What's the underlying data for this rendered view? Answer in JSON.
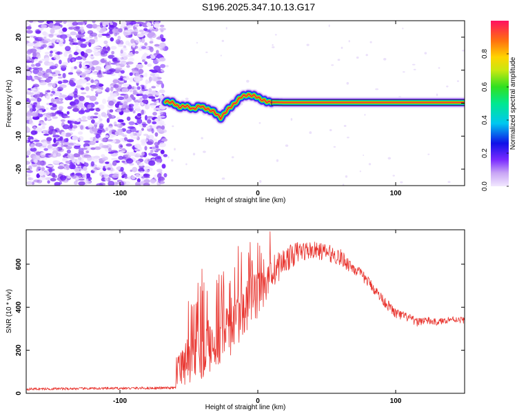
{
  "figure_title": "S196.2025.347.10.13.G17",
  "chart_data": [
    {
      "type": "heatmap",
      "title": "S196.2025.347.10.13.G17",
      "xlabel": "Height of straight line (km)",
      "ylabel": "Frequency (Hz)",
      "xlim": [
        -168,
        150
      ],
      "ylim": [
        -25,
        25
      ],
      "xticks": [
        -100,
        0,
        100
      ],
      "yticks": [
        -20,
        -10,
        0,
        10,
        20
      ],
      "noise_region_x": [
        -168,
        -67
      ],
      "signal_start_x": -67,
      "tone_track": {
        "x": [
          -67,
          -62,
          -57,
          -52,
          -47,
          -42,
          -37,
          -32,
          -27,
          -22,
          -17,
          -12,
          -7,
          -2,
          3,
          8,
          20,
          40,
          60,
          80,
          100,
          120,
          140,
          150
        ],
        "y": [
          0.5,
          0.2,
          -1.2,
          -0.8,
          -1.8,
          -0.8,
          -1.8,
          -2.5,
          -4.5,
          -2.0,
          -0.2,
          2.0,
          2.5,
          2.2,
          1.0,
          0.3,
          0.2,
          0.2,
          0.2,
          0.2,
          0.2,
          0.2,
          0.2,
          0.2
        ]
      },
      "colorbar": {
        "label": "Normalized spectral amplitude",
        "range": [
          0.0,
          1.0
        ],
        "ticks": [
          "0.0",
          "0.2",
          "0.4",
          "0.6",
          "0.8"
        ]
      }
    },
    {
      "type": "line",
      "xlabel": "Height of straight line (km)",
      "ylabel": "SNR (10 * v/v)",
      "xlim": [
        -168,
        150
      ],
      "ylim": [
        0,
        760
      ],
      "xticks": [
        -100,
        0,
        100
      ],
      "yticks": [
        0,
        200,
        400,
        600
      ],
      "series": [
        {
          "name": "SNR",
          "color": "#e8322c",
          "envelope_x": [
            -168,
            -60,
            -58,
            -50,
            -40,
            -30,
            -20,
            -10,
            0,
            10,
            20,
            30,
            40,
            50,
            60,
            70,
            80,
            90,
            100,
            110,
            115,
            120,
            130,
            140,
            150
          ],
          "envelope_base": [
            20,
            25,
            90,
            140,
            190,
            250,
            300,
            380,
            460,
            560,
            620,
            660,
            665,
            655,
            630,
            580,
            520,
            440,
            370,
            350,
            330,
            340,
            330,
            345,
            340
          ],
          "envelope_amp": [
            6,
            6,
            80,
            110,
            130,
            130,
            130,
            120,
            110,
            80,
            60,
            50,
            40,
            40,
            40,
            30,
            25,
            25,
            25,
            20,
            20,
            20,
            15,
            15,
            15
          ]
        }
      ]
    }
  ],
  "colors": {
    "line": "#e8322c",
    "tone_core": "#e8322c",
    "noise": "#7a2bff"
  }
}
